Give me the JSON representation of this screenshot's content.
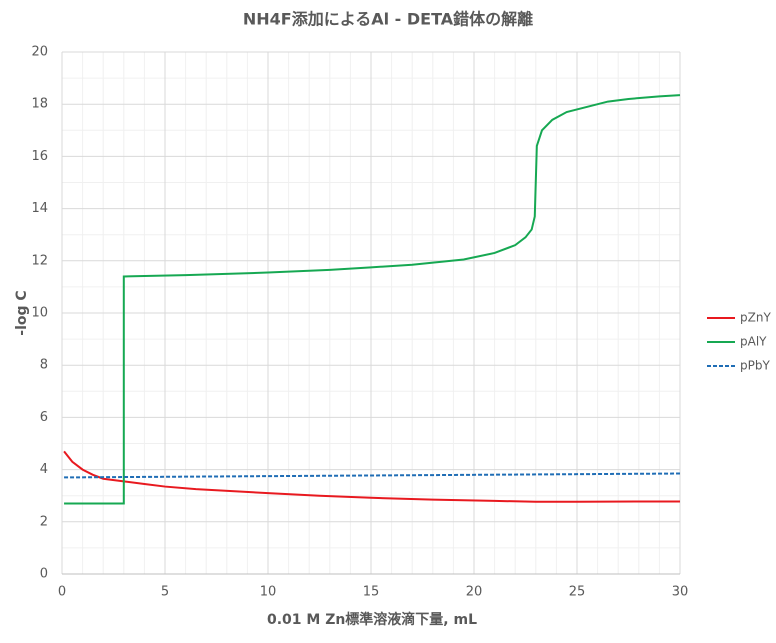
{
  "chart_data": {
    "type": "line",
    "title": "NH4F添加によるAl - DETA錯体の解離",
    "x_label": "0.01 M Zn標準溶液滴下量, mL",
    "y_label": "-log C",
    "xlim": [
      0,
      30
    ],
    "xticks": [
      0,
      5,
      10,
      15,
      20,
      25,
      30
    ],
    "ylim": [
      0,
      20
    ],
    "yticks": [
      0,
      2,
      4,
      6,
      8,
      10,
      12,
      14,
      16,
      18,
      20
    ],
    "grid": true,
    "legend": "right",
    "series": [
      {
        "name": "pZnY",
        "color": "#e8191f",
        "dashed": false,
        "x": [
          0.1,
          0.5,
          1,
          1.5,
          2,
          3,
          4,
          5,
          6.5,
          10,
          12.5,
          15,
          18,
          21,
          23,
          25,
          28,
          30
        ],
        "values": [
          4.7,
          4.3,
          4.0,
          3.8,
          3.65,
          3.55,
          3.45,
          3.35,
          3.25,
          3.1,
          3.0,
          2.92,
          2.85,
          2.8,
          2.77,
          2.77,
          2.78,
          2.78
        ]
      },
      {
        "name": "pAlY",
        "color": "#16a852",
        "dashed": false,
        "x": [
          0.1,
          3,
          3,
          6,
          10,
          13,
          15,
          17,
          19.5,
          21,
          22,
          22.5,
          22.8,
          22.95,
          23.05,
          23.3,
          23.8,
          24.5,
          25.5,
          26.5,
          27.5,
          29,
          30
        ],
        "values": [
          2.7,
          2.7,
          11.4,
          11.45,
          11.55,
          11.65,
          11.75,
          11.85,
          12.05,
          12.3,
          12.6,
          12.9,
          13.2,
          13.7,
          16.4,
          17.0,
          17.4,
          17.7,
          17.9,
          18.1,
          18.2,
          18.3,
          18.35
        ]
      },
      {
        "name": "pPbY",
        "color": "#1f6db5",
        "dashed": true,
        "x": [
          0.1,
          30
        ],
        "values": [
          3.7,
          3.85
        ]
      }
    ]
  }
}
